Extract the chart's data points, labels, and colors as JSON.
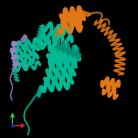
{
  "background_color": "#000000",
  "figsize": [
    2.0,
    2.0
  ],
  "dpi": 100,
  "teal": "#00b894",
  "teal_dark": "#008f72",
  "orange": "#e07818",
  "purple": "#9b7fc0",
  "axis_red": "#dd2222",
  "axis_green": "#22cc22",
  "axis_blue": "#2222dd"
}
